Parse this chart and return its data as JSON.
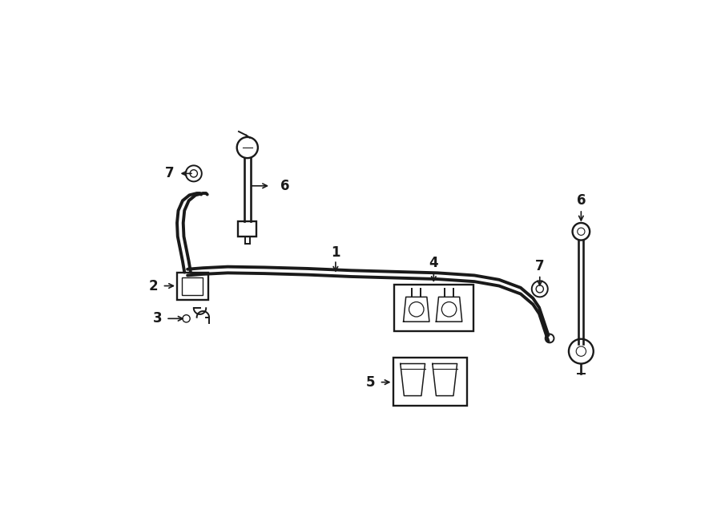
{
  "bg_color": "#ffffff",
  "line_color": "#1a1a1a",
  "fig_width": 9.0,
  "fig_height": 6.61,
  "dpi": 100,
  "bar_lw": 2.8,
  "thin_lw": 1.4,
  "label_fs": 12
}
